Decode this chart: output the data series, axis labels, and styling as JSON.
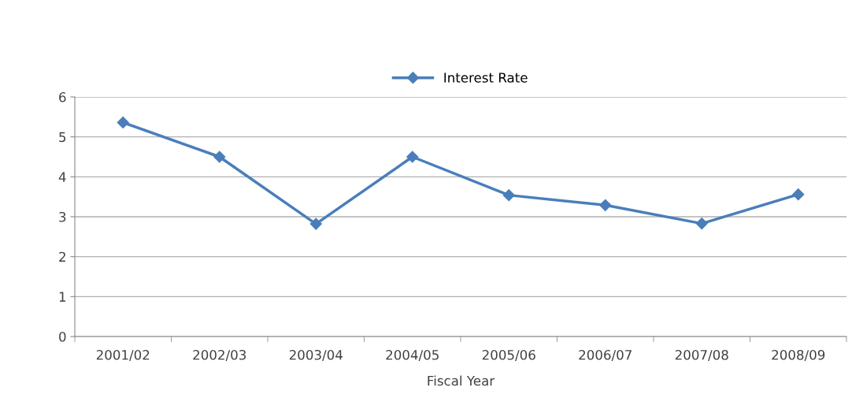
{
  "chart_data": {
    "type": "line",
    "xlabel": "Fiscal Year",
    "categories": [
      "2001/02",
      "2002/03",
      "2003/04",
      "2004/05",
      "2005/06",
      "2006/07",
      "2007/08",
      "2008/09"
    ],
    "series": [
      {
        "name": "Interest Rate",
        "color": "#4a7ebb",
        "values": [
          5.36,
          4.5,
          2.82,
          4.5,
          3.54,
          3.29,
          2.83,
          3.56
        ]
      }
    ],
    "ylim": [
      0,
      6
    ],
    "yticks": [
      0,
      1,
      2,
      3,
      4,
      5,
      6
    ],
    "grid": "y",
    "legend": "top",
    "marker": "diamond",
    "line_style": "solid"
  }
}
